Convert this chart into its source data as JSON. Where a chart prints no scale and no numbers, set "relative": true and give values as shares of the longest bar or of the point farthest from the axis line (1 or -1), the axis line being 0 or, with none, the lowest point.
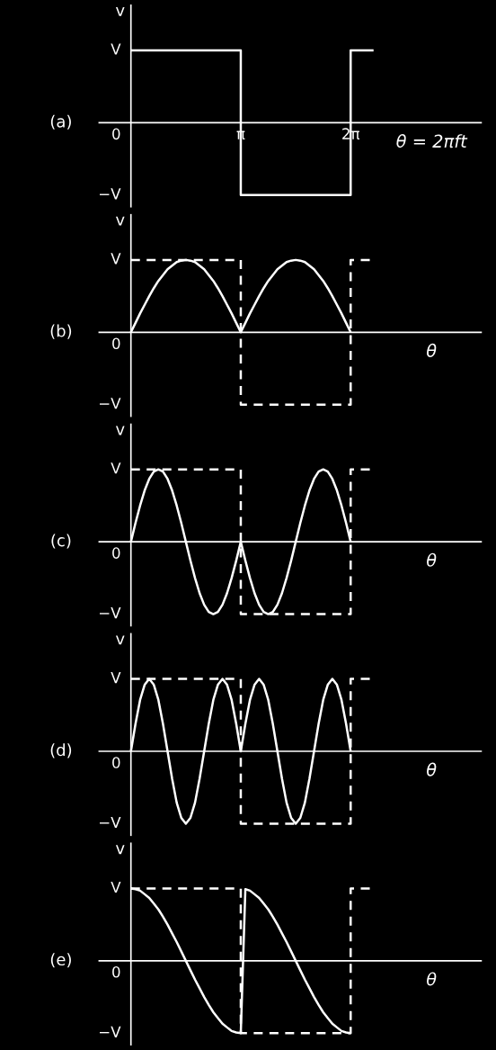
{
  "chart_data": [
    {
      "type": "line",
      "title": "(a)",
      "xlabel": "θ = 2πft",
      "ylabel": "v",
      "relative": true,
      "tick_labels": "x",
      "categories": [
        null,
        null,
        null,
        null,
        null,
        null,
        null,
        null,
        null,
        null,
        null,
        null,
        null,
        null,
        null,
        null,
        null,
        null,
        null,
        null,
        null,
        null,
        null,
        null,
        "π",
        null,
        null,
        null,
        null,
        null,
        null,
        null,
        null,
        null,
        null,
        null,
        null,
        null,
        null,
        null,
        null,
        null,
        null,
        null,
        null,
        null,
        null,
        null,
        "2π",
        null,
        null,
        null,
        null,
        null,
        null,
        null,
        null,
        null,
        null,
        null,
        null,
        null,
        null,
        null,
        null,
        null,
        null,
        null,
        null,
        null,
        null,
        null,
        null,
        null,
        null,
        null,
        null
      ],
      "annotations": [
        "V",
        "0",
        "−V"
      ],
      "series": [
        {
          "type": "step",
          "color": "#ffffff",
          "line_style": "solid",
          "values": [
            1,
            1,
            1,
            1,
            1,
            1,
            1,
            1,
            1,
            1,
            1,
            1,
            1,
            1,
            1,
            1,
            1,
            1,
            1,
            1,
            1,
            1,
            1,
            1,
            -1,
            -1,
            -1,
            -1,
            -1,
            -1,
            -1,
            -1,
            -1,
            -1,
            -1,
            -1,
            -1,
            -1,
            -1,
            -1,
            -1,
            -1,
            -1,
            -1,
            -1,
            -1,
            -1,
            -1,
            1,
            1,
            1,
            1,
            1,
            1,
            null,
            null,
            null,
            null,
            null,
            null,
            null,
            null,
            null,
            null,
            null,
            null,
            null,
            null,
            null,
            null,
            null,
            null,
            null,
            null,
            null,
            null,
            null
          ]
        }
      ]
    },
    {
      "type": "line",
      "title": "(b)",
      "xlabel": "θ",
      "ylabel": "v",
      "relative": true,
      "tick_labels": false,
      "categories": [
        null,
        null,
        null,
        null,
        null,
        null,
        null,
        null,
        null,
        null,
        null,
        null,
        null,
        null,
        null,
        null,
        null,
        null,
        null,
        null,
        null,
        null,
        null,
        null,
        null,
        null,
        null,
        null,
        null,
        null,
        null,
        null,
        null,
        null,
        null,
        null,
        null,
        null,
        null,
        null,
        null,
        null,
        null,
        null,
        null,
        null,
        null,
        null,
        null,
        null,
        null,
        null,
        null,
        null,
        null,
        null,
        null,
        null,
        null,
        null,
        null,
        null,
        null,
        null,
        null,
        null,
        null,
        null,
        null,
        null,
        null,
        null,
        null,
        null,
        null,
        null,
        null
      ],
      "annotations": [
        "V",
        "0",
        "−V"
      ],
      "series": [
        {
          "type": "step",
          "color": "#ffffff",
          "line_style": "dashed",
          "values": [
            1,
            1,
            1,
            1,
            1,
            1,
            1,
            1,
            1,
            1,
            1,
            1,
            1,
            1,
            1,
            1,
            1,
            1,
            1,
            1,
            1,
            1,
            1,
            1,
            -1,
            -1,
            -1,
            -1,
            -1,
            -1,
            -1,
            -1,
            -1,
            -1,
            -1,
            -1,
            -1,
            -1,
            -1,
            -1,
            -1,
            -1,
            -1,
            -1,
            -1,
            -1,
            -1,
            -1,
            1,
            1,
            1,
            1,
            1,
            1,
            null,
            null,
            null,
            null,
            null,
            null,
            null,
            null,
            null,
            null,
            null,
            null,
            null,
            null,
            null,
            null,
            null,
            null,
            null,
            null,
            null,
            null,
            null
          ]
        },
        {
          "color": "#ffffff",
          "line_style": "solid",
          "values": [
            0,
            0.13,
            0.26,
            0.38,
            0.5,
            0.61,
            0.71,
            0.79,
            0.87,
            0.92,
            0.97,
            0.99,
            1,
            0.99,
            0.97,
            0.92,
            0.87,
            0.79,
            0.71,
            0.61,
            0.5,
            0.38,
            0.26,
            0.13,
            0,
            0.13,
            0.26,
            0.38,
            0.5,
            0.61,
            0.71,
            0.79,
            0.87,
            0.92,
            0.97,
            0.99,
            1,
            0.99,
            0.97,
            0.92,
            0.87,
            0.79,
            0.71,
            0.61,
            0.5,
            0.38,
            0.26,
            0.13,
            0,
            null,
            null,
            null,
            null,
            null,
            null,
            null,
            null,
            null,
            null,
            null,
            null,
            null,
            null,
            null,
            null,
            null,
            null,
            null,
            null,
            null,
            null,
            null,
            null,
            null,
            null,
            null,
            null
          ]
        }
      ]
    },
    {
      "type": "line",
      "title": "(c)",
      "xlabel": "θ",
      "ylabel": "v",
      "relative": true,
      "tick_labels": false,
      "categories": [
        null,
        null,
        null,
        null,
        null,
        null,
        null,
        null,
        null,
        null,
        null,
        null,
        null,
        null,
        null,
        null,
        null,
        null,
        null,
        null,
        null,
        null,
        null,
        null,
        null,
        null,
        null,
        null,
        null,
        null,
        null,
        null,
        null,
        null,
        null,
        null,
        null,
        null,
        null,
        null,
        null,
        null,
        null,
        null,
        null,
        null,
        null,
        null,
        null,
        null,
        null,
        null,
        null,
        null,
        null,
        null,
        null,
        null,
        null,
        null,
        null,
        null,
        null,
        null,
        null,
        null,
        null,
        null,
        null,
        null,
        null,
        null,
        null,
        null,
        null,
        null,
        null
      ],
      "annotations": [
        "V",
        "0",
        "−V"
      ],
      "series": [
        {
          "type": "step",
          "color": "#ffffff",
          "line_style": "dashed",
          "values": [
            1,
            1,
            1,
            1,
            1,
            1,
            1,
            1,
            1,
            1,
            1,
            1,
            1,
            1,
            1,
            1,
            1,
            1,
            1,
            1,
            1,
            1,
            1,
            1,
            -1,
            -1,
            -1,
            -1,
            -1,
            -1,
            -1,
            -1,
            -1,
            -1,
            -1,
            -1,
            -1,
            -1,
            -1,
            -1,
            -1,
            -1,
            -1,
            -1,
            -1,
            -1,
            -1,
            -1,
            1,
            1,
            1,
            1,
            1,
            1,
            null,
            null,
            null,
            null,
            null,
            null,
            null,
            null,
            null,
            null,
            null,
            null,
            null,
            null,
            null,
            null,
            null,
            null,
            null,
            null,
            null,
            null,
            null
          ]
        },
        {
          "color": "#ffffff",
          "line_style": "solid",
          "values": [
            0,
            0.26,
            0.5,
            0.71,
            0.87,
            0.97,
            1,
            0.97,
            0.87,
            0.71,
            0.5,
            0.26,
            0,
            -0.26,
            -0.5,
            -0.71,
            -0.87,
            -0.97,
            -1,
            -0.97,
            -0.87,
            -0.71,
            -0.5,
            -0.26,
            0,
            -0.26,
            -0.5,
            -0.71,
            -0.87,
            -0.97,
            -1,
            -0.97,
            -0.87,
            -0.71,
            -0.5,
            -0.26,
            0,
            0.26,
            0.5,
            0.71,
            0.87,
            0.97,
            1,
            0.97,
            0.87,
            0.71,
            0.5,
            0.26,
            0,
            null,
            null,
            null,
            null,
            null,
            null,
            null,
            null,
            null,
            null,
            null,
            null,
            null,
            null,
            null,
            null,
            null,
            null,
            null,
            null,
            null,
            null,
            null,
            null,
            null,
            null,
            null,
            null
          ]
        }
      ]
    },
    {
      "type": "line",
      "title": "(d)",
      "xlabel": "θ",
      "ylabel": "v",
      "relative": true,
      "tick_labels": false,
      "categories": [
        null,
        null,
        null,
        null,
        null,
        null,
        null,
        null,
        null,
        null,
        null,
        null,
        null,
        null,
        null,
        null,
        null,
        null,
        null,
        null,
        null,
        null,
        null,
        null,
        null,
        null,
        null,
        null,
        null,
        null,
        null,
        null,
        null,
        null,
        null,
        null,
        null,
        null,
        null,
        null,
        null,
        null,
        null,
        null,
        null,
        null,
        null,
        null,
        null,
        null,
        null,
        null,
        null,
        null,
        null,
        null,
        null,
        null,
        null,
        null,
        null,
        null,
        null,
        null,
        null,
        null,
        null,
        null,
        null,
        null,
        null,
        null,
        null,
        null,
        null,
        null,
        null
      ],
      "annotations": [
        "V",
        "0",
        "−V"
      ],
      "series": [
        {
          "type": "step",
          "color": "#ffffff",
          "line_style": "dashed",
          "values": [
            1,
            1,
            1,
            1,
            1,
            1,
            1,
            1,
            1,
            1,
            1,
            1,
            1,
            1,
            1,
            1,
            1,
            1,
            1,
            1,
            1,
            1,
            1,
            1,
            -1,
            -1,
            -1,
            -1,
            -1,
            -1,
            -1,
            -1,
            -1,
            -1,
            -1,
            -1,
            -1,
            -1,
            -1,
            -1,
            -1,
            -1,
            -1,
            -1,
            -1,
            -1,
            -1,
            -1,
            1,
            1,
            1,
            1,
            1,
            1,
            null,
            null,
            null,
            null,
            null,
            null,
            null,
            null,
            null,
            null,
            null,
            null,
            null,
            null,
            null,
            null,
            null,
            null,
            null,
            null,
            null,
            null,
            null
          ]
        },
        {
          "color": "#ffffff",
          "line_style": "solid",
          "values": [
            0,
            0.38,
            0.71,
            0.92,
            1,
            0.92,
            0.71,
            0.38,
            0,
            -0.38,
            -0.71,
            -0.92,
            -1,
            -0.92,
            -0.71,
            -0.38,
            0,
            0.38,
            0.71,
            0.92,
            1,
            0.92,
            0.71,
            0.38,
            0,
            0.38,
            0.71,
            0.92,
            1,
            0.92,
            0.71,
            0.38,
            0,
            -0.38,
            -0.71,
            -0.92,
            -1,
            -0.92,
            -0.71,
            -0.38,
            0,
            0.38,
            0.71,
            0.92,
            1,
            0.92,
            0.71,
            0.38,
            0,
            null,
            null,
            null,
            null,
            null,
            null,
            null,
            null,
            null,
            null,
            null,
            null,
            null,
            null,
            null,
            null,
            null,
            null,
            null,
            null,
            null,
            null,
            null,
            null,
            null,
            null,
            null,
            null
          ]
        }
      ]
    },
    {
      "type": "line",
      "title": "(e)",
      "xlabel": "θ",
      "ylabel": "v",
      "relative": true,
      "tick_labels": false,
      "categories": [
        null,
        null,
        null,
        null,
        null,
        null,
        null,
        null,
        null,
        null,
        null,
        null,
        null,
        null,
        null,
        null,
        null,
        null,
        null,
        null,
        null,
        null,
        null,
        null,
        null,
        null,
        null,
        null,
        null,
        null,
        null,
        null,
        null,
        null,
        null,
        null,
        null,
        null,
        null,
        null,
        null,
        null,
        null,
        null,
        null,
        null,
        null,
        null,
        null,
        null,
        null,
        null,
        null,
        null,
        null,
        null,
        null,
        null,
        null,
        null,
        null,
        null,
        null,
        null,
        null,
        null,
        null,
        null,
        null,
        null,
        null,
        null,
        null,
        null,
        null,
        null,
        null
      ],
      "annotations": [
        "V",
        "0",
        "−V"
      ],
      "series": [
        {
          "type": "step",
          "color": "#ffffff",
          "line_style": "dashed",
          "values": [
            1,
            1,
            1,
            1,
            1,
            1,
            1,
            1,
            1,
            1,
            1,
            1,
            1,
            1,
            1,
            1,
            1,
            1,
            1,
            1,
            1,
            1,
            1,
            1,
            -1,
            -1,
            -1,
            -1,
            -1,
            -1,
            -1,
            -1,
            -1,
            -1,
            -1,
            -1,
            -1,
            -1,
            -1,
            -1,
            -1,
            -1,
            -1,
            -1,
            -1,
            -1,
            -1,
            -1,
            1,
            1,
            1,
            1,
            1,
            1,
            null,
            null,
            null,
            null,
            null,
            null,
            null,
            null,
            null,
            null,
            null,
            null,
            null,
            null,
            null,
            null,
            null,
            null,
            null,
            null,
            null,
            null,
            null
          ]
        },
        {
          "color": "#ffffff",
          "line_style": "solid",
          "values": [
            1,
            0.99,
            0.97,
            0.92,
            0.87,
            0.79,
            0.71,
            0.61,
            0.5,
            0.38,
            0.26,
            0.13,
            0,
            -0.13,
            -0.26,
            -0.38,
            -0.5,
            -0.61,
            -0.71,
            -0.79,
            -0.87,
            -0.92,
            -0.97,
            -0.99,
            -1,
            0.99,
            0.97,
            0.92,
            0.87,
            0.79,
            0.71,
            0.61,
            0.5,
            0.38,
            0.26,
            0.13,
            0,
            -0.13,
            -0.26,
            -0.38,
            -0.5,
            -0.61,
            -0.71,
            -0.79,
            -0.87,
            -0.92,
            -0.97,
            -0.99,
            -1,
            null,
            null,
            null,
            null,
            null,
            null,
            null,
            null,
            null,
            null,
            null,
            null,
            null,
            null,
            null,
            null,
            null,
            null,
            null,
            null,
            null,
            null,
            null,
            null,
            null,
            null,
            null,
            null
          ]
        }
      ]
    }
  ]
}
